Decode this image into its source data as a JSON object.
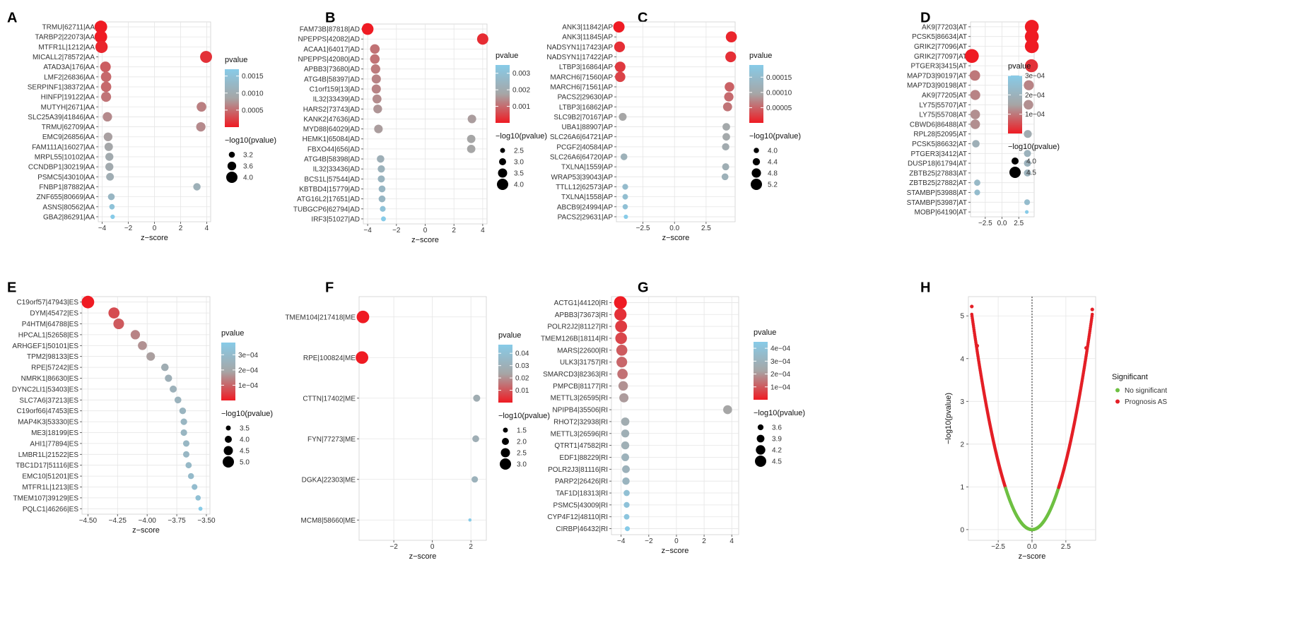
{
  "colors": {
    "low_p": "#ef1b23",
    "mid_p": "#a6a6a6",
    "high_p": "#87cbe8",
    "grid": "#e5e5e5",
    "no_sig": "#6ec042",
    "prognosis": "#e41f26",
    "text": "#333333"
  },
  "figure": {
    "size_legend_title": "−log10(pvalue)",
    "color_legend_title": "pvalue",
    "x_title": "z−score"
  },
  "chart_data": [
    {
      "panel": "A",
      "type": "scatter",
      "title": "A",
      "xlabel": "z−score",
      "ylabel": "",
      "xlim": [
        -4.3,
        4.3
      ],
      "xticks": [
        -4,
        -2,
        0,
        2,
        4
      ],
      "xtick_labels": [
        "−4",
        "−2",
        "0",
        "2",
        "4"
      ],
      "genes": [
        "TRMU|62711|AA",
        "TARBP2|22073|AA",
        "MTFR1L|1212|AA",
        "MICALL2|78572|AA",
        "ATAD3A|176|AA",
        "LMF2|26836|AA",
        "SERPINF1|38372|AA",
        "HINFP|19122|AA",
        "MUTYH|2671|AA",
        "SLC25A39|41846|AA",
        "TRMU|62709|AA",
        "EMC9|26856|AA",
        "FAM111A|16027|AA",
        "MRPL55|10102|AA",
        "CCNDBP1|30219|AA",
        "PSMC5|43010|AA",
        "FNBP1|87882|AA",
        "ZNF655|80669|AA",
        "ASNS|80562|AA",
        "GBA2|86291|AA"
      ],
      "z": [
        -4.1,
        -4.1,
        -4.05,
        3.95,
        -3.75,
        -3.7,
        -3.7,
        -3.7,
        3.6,
        -3.6,
        3.55,
        -3.55,
        -3.5,
        -3.45,
        -3.45,
        -3.4,
        3.25,
        -3.3,
        -3.25,
        -3.2
      ],
      "neglog10p": [
        4.2,
        4.2,
        4.15,
        4.1,
        3.9,
        3.85,
        3.85,
        3.8,
        3.75,
        3.7,
        3.7,
        3.6,
        3.55,
        3.5,
        3.5,
        3.45,
        3.4,
        3.3,
        3.1,
        2.95
      ],
      "color_legend": {
        "range": [
          0.0,
          0.0017
        ],
        "ticks": [
          0.0005,
          0.001,
          0.0015
        ],
        "labels": [
          "0.0005",
          "0.0010",
          "0.0015"
        ]
      },
      "size_legend": {
        "values": [
          3.2,
          3.6,
          4.0
        ],
        "labels": [
          "3.2",
          "3.6",
          "4.0"
        ]
      }
    },
    {
      "panel": "B",
      "type": "scatter",
      "title": "B",
      "xlabel": "z−score",
      "ylabel": "",
      "xlim": [
        -4.3,
        4.3
      ],
      "xticks": [
        -4,
        -2,
        0,
        2,
        4
      ],
      "xtick_labels": [
        "−4",
        "−2",
        "0",
        "2",
        "4"
      ],
      "genes": [
        "FAM73B|87818|AD",
        "NPEPPS|42082|AD",
        "ACAA1|64017|AD",
        "NPEPPS|42080|AD",
        "APBB3|73680|AD",
        "ATG4B|58397|AD",
        "C1orf159|13|AD",
        "IL32|33439|AD",
        "HARS2|73743|AD",
        "KANK2|47636|AD",
        "MYD88|64029|AD",
        "HEMK1|65084|AD",
        "FBXO44|656|AD",
        "ATG4B|58398|AD",
        "IL32|33436|AD",
        "BCS1L|57544|AD",
        "KBTBD4|15779|AD",
        "ATG16L2|17651|AD",
        "TUBGCP6|62794|AD",
        "IRF3|51027|AD"
      ],
      "z": [
        -4.0,
        4.0,
        -3.5,
        -3.5,
        -3.45,
        -3.4,
        -3.4,
        -3.35,
        -3.3,
        3.25,
        -3.25,
        3.2,
        3.2,
        -3.1,
        -3.05,
        -3.05,
        -3.0,
        -3.0,
        -2.95,
        -2.9
      ],
      "neglog10p": [
        4.1,
        4.0,
        3.6,
        3.6,
        3.55,
        3.5,
        3.5,
        3.45,
        3.4,
        3.35,
        3.35,
        3.3,
        3.3,
        3.1,
        3.05,
        3.0,
        2.95,
        2.95,
        2.7,
        2.5
      ],
      "color_legend": {
        "range": [
          0.0,
          0.0035
        ],
        "ticks": [
          0.001,
          0.002,
          0.003
        ],
        "labels": [
          "0.001",
          "0.002",
          "0.003"
        ]
      },
      "size_legend": {
        "values": [
          2.5,
          3.0,
          3.5,
          4.0
        ],
        "labels": [
          "2.5",
          "3.0",
          "3.5",
          "4.0"
        ]
      }
    },
    {
      "panel": "C",
      "type": "scatter",
      "title": "C",
      "xlabel": "z−score",
      "ylabel": "",
      "xlim": [
        -4.6,
        4.8
      ],
      "xticks": [
        -2.5,
        0,
        2.5
      ],
      "xtick_labels": [
        "−2.5",
        "0.0",
        "2.5"
      ],
      "genes": [
        "ANK3|11842|AP",
        "ANK3|11845|AP",
        "NADSYN1|17423|AP",
        "NADSYN1|17422|AP",
        "LTBP3|16864|AP",
        "MARCH6|71560|AP",
        "MARCH6|71561|AP",
        "PACS2|29630|AP",
        "LTBP3|16862|AP",
        "SLC9B2|70167|AP",
        "UBA1|88907|AP",
        "SLC26A6|64721|AP",
        "PCGF2|40584|AP",
        "SLC26A6|64720|AP",
        "TXLNA|1559|AP",
        "WRAP53|39043|AP",
        "TTLL12|62573|AP",
        "TXLNA|1558|AP",
        "ABCB9|24994|AP",
        "PACS2|29631|AP"
      ],
      "z": [
        -4.4,
        4.5,
        -4.35,
        4.45,
        -4.3,
        -4.3,
        4.35,
        4.3,
        4.2,
        -4.1,
        4.1,
        4.1,
        4.05,
        -4.0,
        4.05,
        4.0,
        -3.9,
        -3.9,
        -3.9,
        -3.85
      ],
      "neglog10p": [
        5.2,
        5.15,
        5.1,
        5.1,
        5.05,
        5.0,
        4.85,
        4.8,
        4.75,
        4.5,
        4.45,
        4.45,
        4.4,
        4.3,
        4.35,
        4.3,
        4.1,
        4.05,
        4.0,
        3.8
      ],
      "color_legend": {
        "range": [
          0.0,
          0.00019
        ],
        "ticks": [
          5e-05,
          0.0001,
          0.00015
        ],
        "labels": [
          "0.00005",
          "0.00010",
          "0.00015"
        ]
      },
      "size_legend": {
        "values": [
          4.0,
          4.4,
          4.8,
          5.2
        ],
        "labels": [
          "4.0",
          "4.4",
          "4.8",
          "5.2"
        ]
      }
    },
    {
      "panel": "D",
      "type": "scatter",
      "title": "D",
      "xlabel": "",
      "ylabel": "",
      "xlim": [
        -4.7,
        4.8
      ],
      "xticks": [
        -2.5,
        0,
        2.5
      ],
      "xtick_labels": [
        "−2.5",
        "0.0",
        "2.5"
      ],
      "genes": [
        "AK9|77203|AT",
        "PCSK5|86634|AT",
        "GRIK2|77096|AT",
        "GRIK2|77097|AT",
        "PTGER3|3415|AT",
        "MAP7D3|90197|AT",
        "MAP7D3|90198|AT",
        "AK9|77205|AT",
        "LY75|55707|AT",
        "LY75|55708|AT",
        "CBWD6|86488|AT",
        "RPL28|52095|AT",
        "PCSK5|86632|AT",
        "PTGER3|3412|AT",
        "DUSP18|61794|AT",
        "ZBTB25|27883|AT",
        "ZBTB25|27882|AT",
        "STAMBP|53988|AT",
        "STAMBP|53987|AT",
        "MOBP|64190|AT"
      ],
      "z": [
        4.45,
        4.45,
        4.45,
        -4.5,
        4.4,
        -4.05,
        4.0,
        -4.0,
        3.95,
        -4.0,
        -4.0,
        3.85,
        -3.9,
        3.8,
        3.8,
        3.8,
        -3.7,
        -3.7,
        3.75,
        3.7
      ],
      "neglog10p": [
        4.8,
        4.8,
        4.8,
        4.8,
        4.7,
        4.4,
        4.35,
        4.35,
        4.3,
        4.3,
        4.3,
        4.1,
        4.05,
        4.0,
        4.0,
        4.0,
        3.9,
        3.85,
        3.85,
        3.6
      ],
      "color_legend": {
        "range": [
          0.0,
          0.0003
        ],
        "ticks": [
          0.0001,
          0.0002,
          0.0003
        ],
        "labels": [
          "1e−04",
          "2e−04",
          "3e−04"
        ]
      },
      "size_legend": {
        "values": [
          4.0,
          4.5
        ],
        "labels": [
          "4.0",
          "4.5"
        ]
      }
    },
    {
      "panel": "E",
      "type": "scatter",
      "title": "E",
      "xlabel": "z−score",
      "ylabel": "",
      "xlim": [
        -4.55,
        -3.47
      ],
      "xticks": [
        -4.5,
        -4.25,
        -4.0,
        -3.75,
        -3.5
      ],
      "xtick_labels": [
        "−4.50",
        "−4.25",
        "−4.00",
        "−3.75",
        "−3.50"
      ],
      "genes": [
        "C19orf57|47943|ES",
        "DYM|45472|ES",
        "P4HTM|64788|ES",
        "HPCAL1|52658|ES",
        "ARHGEF1|50101|ES",
        "TPM2|98133|ES",
        "RPE|57242|ES",
        "NMRK1|86630|ES",
        "DYNC2LI1|53403|ES",
        "SLC7A6|37213|ES",
        "C19orf66|47453|ES",
        "MAP4K3|53330|ES",
        "ME3|18199|ES",
        "AHI1|77894|ES",
        "LMBR1L|21522|ES",
        "TBC1D17|51116|ES",
        "EMC10|51201|ES",
        "MTFR1L|1213|ES",
        "TMEM107|39129|ES",
        "PQLC1|46266|ES"
      ],
      "z": [
        -4.5,
        -4.28,
        -4.24,
        -4.1,
        -4.04,
        -3.97,
        -3.85,
        -3.82,
        -3.78,
        -3.74,
        -3.7,
        -3.69,
        -3.69,
        -3.67,
        -3.67,
        -3.65,
        -3.63,
        -3.6,
        -3.57,
        -3.55
      ],
      "neglog10p": [
        5.3,
        4.95,
        4.85,
        4.55,
        4.45,
        4.35,
        4.1,
        4.05,
        4.0,
        3.95,
        3.9,
        3.88,
        3.87,
        3.85,
        3.84,
        3.8,
        3.75,
        3.7,
        3.6,
        3.3
      ],
      "color_legend": {
        "range": [
          0.0,
          0.00038
        ],
        "ticks": [
          0.0001,
          0.0002,
          0.0003
        ],
        "labels": [
          "1e−04",
          "2e−04",
          "3e−04"
        ]
      },
      "size_legend": {
        "values": [
          3.5,
          4.0,
          4.5,
          5.0
        ],
        "labels": [
          "3.5",
          "4.0",
          "4.5",
          "5.0"
        ]
      }
    },
    {
      "panel": "F",
      "type": "scatter",
      "title": "F",
      "xlabel": "z−score",
      "ylabel": "",
      "xlim": [
        -3.8,
        2.8
      ],
      "xticks": [
        -2,
        0,
        2
      ],
      "xtick_labels": [
        "−2",
        "0",
        "2"
      ],
      "genes": [
        "TMEM104|217418|ME",
        "RPE|100824|ME",
        "CTTN|17402|ME",
        "FYN|77273|ME",
        "DGKA|22303|ME",
        "MCM8|58660|ME"
      ],
      "z": [
        -3.6,
        -3.65,
        2.3,
        2.25,
        2.2,
        1.95
      ],
      "neglog10p": [
        3.3,
        3.3,
        2.0,
        1.95,
        1.85,
        1.1
      ],
      "color_legend": {
        "range": [
          0.0,
          0.047
        ],
        "ticks": [
          0.01,
          0.02,
          0.03,
          0.04
        ],
        "labels": [
          "0.01",
          "0.02",
          "0.03",
          "0.04"
        ]
      },
      "size_legend": {
        "values": [
          1.5,
          2.0,
          2.5,
          3.0
        ],
        "labels": [
          "1.5",
          "2.0",
          "2.5",
          "3.0"
        ]
      }
    },
    {
      "panel": "G",
      "type": "scatter",
      "title": "G",
      "xlabel": "z−score",
      "ylabel": "",
      "xlim": [
        -4.7,
        4.5
      ],
      "xticks": [
        -4,
        -2,
        0,
        2,
        4
      ],
      "xtick_labels": [
        "−4",
        "−2",
        "0",
        "2",
        "4"
      ],
      "genes": [
        "ACTG1|44120|RI",
        "APBB3|73673|RI",
        "POLR2J2|81127|RI",
        "TMEM126B|18114|RI",
        "MARS|22600|RI",
        "ULK3|31757|RI",
        "SMARCD3|82363|RI",
        "PMPCB|81177|RI",
        "METTL3|26595|RI",
        "NPIPB4|35506|RI",
        "RHOT2|32938|RI",
        "METTL3|26596|RI",
        "QTRT1|47582|RI",
        "EDF1|88229|RI",
        "POLR2J3|81116|RI",
        "PARP2|26426|RI",
        "TAF1D|18313|RI",
        "PSMC5|43009|RI",
        "CYP4F12|48110|RI",
        "CIRBP|46432|RI"
      ],
      "z": [
        -4.05,
        -4.05,
        -4.0,
        -4.0,
        -3.95,
        -3.95,
        -3.9,
        -3.85,
        -3.8,
        3.7,
        -3.7,
        -3.7,
        -3.7,
        -3.7,
        -3.65,
        -3.65,
        -3.6,
        -3.6,
        -3.6,
        -3.55
      ],
      "neglog10p": [
        4.75,
        4.65,
        4.6,
        4.55,
        4.45,
        4.4,
        4.35,
        4.2,
        4.15,
        4.1,
        4.0,
        3.95,
        3.95,
        3.9,
        3.9,
        3.85,
        3.65,
        3.6,
        3.55,
        3.45
      ],
      "color_legend": {
        "range": [
          0.0,
          0.00045
        ],
        "ticks": [
          0.0001,
          0.0002,
          0.0003,
          0.0004
        ],
        "labels": [
          "1e−04",
          "2e−04",
          "3e−04",
          "4e−04"
        ]
      },
      "size_legend": {
        "values": [
          3.6,
          3.9,
          4.2,
          4.5
        ],
        "labels": [
          "3.6",
          "3.9",
          "4.2",
          "4.5"
        ]
      }
    },
    {
      "panel": "H",
      "type": "scatter",
      "title": "H",
      "xlabel": "z−score",
      "ylabel": "−log10(pvalue)",
      "xlim": [
        -4.7,
        4.7
      ],
      "ylim": [
        -0.25,
        5.45
      ],
      "xticks": [
        -2.5,
        0,
        2.5
      ],
      "xtick_labels": [
        "−2.5",
        "0.0",
        "2.5"
      ],
      "yticks": [
        0,
        1,
        2,
        3,
        4,
        5
      ],
      "ytick_labels": [
        "0",
        "1",
        "2",
        "3",
        "4",
        "5"
      ],
      "curve_max_abs_z": 4.5,
      "significance_abs_z": 1.96,
      "z_min": -4.45,
      "z_max": 4.45,
      "points": [
        [
          -4.45,
          5.22
        ],
        [
          4.45,
          5.15
        ],
        [
          -4.05,
          4.3
        ],
        [
          4.0,
          4.25
        ]
      ],
      "reference_line_x": 0,
      "legend_title": "Significant",
      "legend": [
        {
          "label": "No significant",
          "color": "#6ec042"
        },
        {
          "label": "Prognosis AS",
          "color": "#e41f26"
        }
      ]
    }
  ]
}
